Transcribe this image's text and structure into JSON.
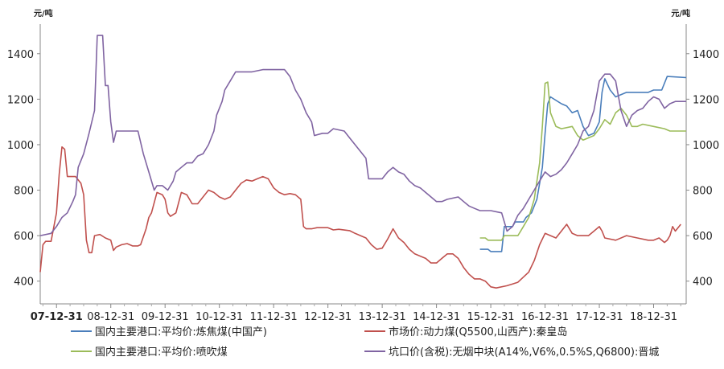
{
  "chart_data": {
    "type": "line",
    "left_unit": "元/吨",
    "right_unit": "元/吨",
    "ylim": [
      300,
      1530
    ],
    "y_ticks": [
      400,
      600,
      800,
      1000,
      1200,
      1400
    ],
    "x_ticks": [
      "07-12-31",
      "08-12-31",
      "09-12-31",
      "10-12-31",
      "11-12-31",
      "12-12-31",
      "13-12-31",
      "14-12-31",
      "15-12-31",
      "16-12-31",
      "17-12-31",
      "18-12-31"
    ],
    "x_tick_pos": [
      0.0,
      1.0,
      2.0,
      3.0,
      4.0,
      5.0,
      6.0,
      7.0,
      8.0,
      9.0,
      10.0,
      11.0
    ],
    "xlim": [
      -0.3,
      11.6
    ],
    "grid": false,
    "legend_position": "bottom",
    "series": [
      {
        "name": "国内主要港口:平均价:炼焦煤(中国产)",
        "color": "#4a7ebb",
        "points": [
          [
            7.8,
            540
          ],
          [
            7.95,
            540
          ],
          [
            8.0,
            530
          ],
          [
            8.2,
            530
          ],
          [
            8.25,
            640
          ],
          [
            8.4,
            640
          ],
          [
            8.45,
            660
          ],
          [
            8.6,
            660
          ],
          [
            8.65,
            680
          ],
          [
            8.75,
            700
          ],
          [
            8.85,
            760
          ],
          [
            8.95,
            900
          ],
          [
            9.0,
            1050
          ],
          [
            9.05,
            1180
          ],
          [
            9.1,
            1210
          ],
          [
            9.3,
            1180
          ],
          [
            9.4,
            1170
          ],
          [
            9.5,
            1140
          ],
          [
            9.6,
            1150
          ],
          [
            9.7,
            1080
          ],
          [
            9.8,
            1040
          ],
          [
            9.9,
            1050
          ],
          [
            10.0,
            1100
          ],
          [
            10.05,
            1230
          ],
          [
            10.1,
            1290
          ],
          [
            10.2,
            1240
          ],
          [
            10.3,
            1210
          ],
          [
            10.5,
            1230
          ],
          [
            10.7,
            1230
          ],
          [
            10.9,
            1230
          ],
          [
            11.0,
            1240
          ],
          [
            11.15,
            1240
          ],
          [
            11.25,
            1300
          ],
          [
            11.6,
            1295
          ]
        ]
      },
      {
        "name": "市场价:动力煤(Q5500,山西产):秦皇岛",
        "color": "#c0504d",
        "points": [
          [
            -0.3,
            440
          ],
          [
            -0.25,
            560
          ],
          [
            -0.2,
            575
          ],
          [
            -0.1,
            575
          ],
          [
            0.0,
            700
          ],
          [
            0.05,
            870
          ],
          [
            0.1,
            990
          ],
          [
            0.15,
            980
          ],
          [
            0.2,
            860
          ],
          [
            0.35,
            860
          ],
          [
            0.45,
            830
          ],
          [
            0.5,
            780
          ],
          [
            0.55,
            580
          ],
          [
            0.6,
            525
          ],
          [
            0.65,
            525
          ],
          [
            0.7,
            600
          ],
          [
            0.8,
            605
          ],
          [
            0.9,
            590
          ],
          [
            1.0,
            580
          ],
          [
            1.05,
            535
          ],
          [
            1.1,
            550
          ],
          [
            1.2,
            560
          ],
          [
            1.3,
            565
          ],
          [
            1.4,
            555
          ],
          [
            1.5,
            555
          ],
          [
            1.55,
            560
          ],
          [
            1.65,
            630
          ],
          [
            1.7,
            680
          ],
          [
            1.75,
            700
          ],
          [
            1.85,
            790
          ],
          [
            1.95,
            780
          ],
          [
            2.0,
            760
          ],
          [
            2.05,
            700
          ],
          [
            2.1,
            685
          ],
          [
            2.2,
            700
          ],
          [
            2.3,
            790
          ],
          [
            2.4,
            780
          ],
          [
            2.5,
            740
          ],
          [
            2.6,
            740
          ],
          [
            2.7,
            770
          ],
          [
            2.8,
            800
          ],
          [
            2.9,
            790
          ],
          [
            3.0,
            770
          ],
          [
            3.1,
            760
          ],
          [
            3.2,
            770
          ],
          [
            3.3,
            800
          ],
          [
            3.4,
            830
          ],
          [
            3.5,
            845
          ],
          [
            3.6,
            840
          ],
          [
            3.7,
            850
          ],
          [
            3.8,
            860
          ],
          [
            3.9,
            850
          ],
          [
            4.0,
            810
          ],
          [
            4.1,
            790
          ],
          [
            4.2,
            780
          ],
          [
            4.3,
            785
          ],
          [
            4.4,
            780
          ],
          [
            4.5,
            760
          ],
          [
            4.55,
            640
          ],
          [
            4.6,
            630
          ],
          [
            4.7,
            630
          ],
          [
            4.8,
            635
          ],
          [
            5.0,
            635
          ],
          [
            5.1,
            625
          ],
          [
            5.2,
            628
          ],
          [
            5.4,
            622
          ],
          [
            5.5,
            610
          ],
          [
            5.6,
            600
          ],
          [
            5.7,
            590
          ],
          [
            5.8,
            560
          ],
          [
            5.9,
            540
          ],
          [
            6.0,
            545
          ],
          [
            6.1,
            585
          ],
          [
            6.2,
            630
          ],
          [
            6.3,
            590
          ],
          [
            6.4,
            570
          ],
          [
            6.5,
            540
          ],
          [
            6.6,
            520
          ],
          [
            6.7,
            510
          ],
          [
            6.8,
            500
          ],
          [
            6.9,
            480
          ],
          [
            7.0,
            480
          ],
          [
            7.1,
            500
          ],
          [
            7.2,
            520
          ],
          [
            7.3,
            520
          ],
          [
            7.4,
            500
          ],
          [
            7.5,
            460
          ],
          [
            7.6,
            430
          ],
          [
            7.7,
            410
          ],
          [
            7.8,
            410
          ],
          [
            7.9,
            400
          ],
          [
            8.0,
            375
          ],
          [
            8.1,
            370
          ],
          [
            8.3,
            380
          ],
          [
            8.5,
            395
          ],
          [
            8.7,
            440
          ],
          [
            8.8,
            490
          ],
          [
            8.9,
            560
          ],
          [
            9.0,
            610
          ],
          [
            9.1,
            600
          ],
          [
            9.2,
            590
          ],
          [
            9.3,
            620
          ],
          [
            9.4,
            650
          ],
          [
            9.5,
            610
          ],
          [
            9.6,
            600
          ],
          [
            9.7,
            600
          ],
          [
            9.8,
            600
          ],
          [
            9.9,
            620
          ],
          [
            10.0,
            640
          ],
          [
            10.05,
            620
          ],
          [
            10.1,
            590
          ],
          [
            10.3,
            580
          ],
          [
            10.5,
            600
          ],
          [
            10.7,
            590
          ],
          [
            10.9,
            580
          ],
          [
            11.0,
            580
          ],
          [
            11.1,
            590
          ],
          [
            11.2,
            570
          ],
          [
            11.25,
            580
          ],
          [
            11.3,
            600
          ],
          [
            11.35,
            640
          ],
          [
            11.4,
            620
          ],
          [
            11.5,
            650
          ]
        ]
      },
      {
        "name": "国内主要港口:平均价:喷吹煤",
        "color": "#9bbb59",
        "points": [
          [
            7.8,
            590
          ],
          [
            7.9,
            590
          ],
          [
            7.95,
            580
          ],
          [
            8.2,
            580
          ],
          [
            8.25,
            600
          ],
          [
            8.5,
            600
          ],
          [
            8.6,
            640
          ],
          [
            8.7,
            680
          ],
          [
            8.8,
            760
          ],
          [
            8.9,
            920
          ],
          [
            8.95,
            1080
          ],
          [
            9.0,
            1270
          ],
          [
            9.05,
            1275
          ],
          [
            9.1,
            1140
          ],
          [
            9.2,
            1080
          ],
          [
            9.3,
            1070
          ],
          [
            9.5,
            1080
          ],
          [
            9.6,
            1040
          ],
          [
            9.7,
            1020
          ],
          [
            9.8,
            1030
          ],
          [
            9.9,
            1040
          ],
          [
            10.0,
            1070
          ],
          [
            10.1,
            1110
          ],
          [
            10.2,
            1090
          ],
          [
            10.3,
            1140
          ],
          [
            10.4,
            1160
          ],
          [
            10.5,
            1130
          ],
          [
            10.6,
            1080
          ],
          [
            10.7,
            1080
          ],
          [
            10.8,
            1090
          ],
          [
            11.0,
            1080
          ],
          [
            11.2,
            1070
          ],
          [
            11.3,
            1060
          ],
          [
            11.6,
            1060
          ]
        ]
      },
      {
        "name": "坑口价(含税):无烟中块(A14%,V6%,0.5%S,Q6800):晋城",
        "color": "#8064a2",
        "points": [
          [
            -0.3,
            600
          ],
          [
            -0.1,
            610
          ],
          [
            0.0,
            640
          ],
          [
            0.1,
            680
          ],
          [
            0.2,
            700
          ],
          [
            0.3,
            750
          ],
          [
            0.35,
            780
          ],
          [
            0.4,
            900
          ],
          [
            0.5,
            960
          ],
          [
            0.6,
            1050
          ],
          [
            0.7,
            1150
          ],
          [
            0.75,
            1480
          ],
          [
            0.85,
            1480
          ],
          [
            0.9,
            1260
          ],
          [
            0.95,
            1260
          ],
          [
            1.0,
            1100
          ],
          [
            1.05,
            1010
          ],
          [
            1.1,
            1060
          ],
          [
            1.3,
            1060
          ],
          [
            1.5,
            1060
          ],
          [
            1.6,
            960
          ],
          [
            1.7,
            880
          ],
          [
            1.8,
            800
          ],
          [
            1.85,
            820
          ],
          [
            1.95,
            820
          ],
          [
            2.05,
            800
          ],
          [
            2.15,
            840
          ],
          [
            2.2,
            880
          ],
          [
            2.3,
            900
          ],
          [
            2.4,
            920
          ],
          [
            2.5,
            920
          ],
          [
            2.6,
            950
          ],
          [
            2.7,
            960
          ],
          [
            2.8,
            1000
          ],
          [
            2.9,
            1060
          ],
          [
            2.95,
            1130
          ],
          [
            3.05,
            1190
          ],
          [
            3.1,
            1240
          ],
          [
            3.2,
            1280
          ],
          [
            3.3,
            1320
          ],
          [
            3.4,
            1320
          ],
          [
            3.6,
            1320
          ],
          [
            3.8,
            1330
          ],
          [
            4.0,
            1330
          ],
          [
            4.2,
            1330
          ],
          [
            4.3,
            1300
          ],
          [
            4.4,
            1240
          ],
          [
            4.5,
            1200
          ],
          [
            4.6,
            1140
          ],
          [
            4.7,
            1100
          ],
          [
            4.75,
            1040
          ],
          [
            4.9,
            1050
          ],
          [
            5.0,
            1050
          ],
          [
            5.1,
            1070
          ],
          [
            5.3,
            1060
          ],
          [
            5.4,
            1030
          ],
          [
            5.5,
            1000
          ],
          [
            5.6,
            970
          ],
          [
            5.7,
            940
          ],
          [
            5.75,
            850
          ],
          [
            5.9,
            850
          ],
          [
            6.0,
            850
          ],
          [
            6.1,
            880
          ],
          [
            6.2,
            900
          ],
          [
            6.3,
            880
          ],
          [
            6.4,
            870
          ],
          [
            6.5,
            840
          ],
          [
            6.6,
            820
          ],
          [
            6.7,
            810
          ],
          [
            6.8,
            790
          ],
          [
            6.9,
            770
          ],
          [
            7.0,
            750
          ],
          [
            7.1,
            750
          ],
          [
            7.2,
            760
          ],
          [
            7.4,
            770
          ],
          [
            7.5,
            750
          ],
          [
            7.6,
            730
          ],
          [
            7.7,
            720
          ],
          [
            7.8,
            710
          ],
          [
            8.0,
            710
          ],
          [
            8.2,
            700
          ],
          [
            8.3,
            620
          ],
          [
            8.4,
            640
          ],
          [
            8.5,
            690
          ],
          [
            8.6,
            720
          ],
          [
            8.7,
            760
          ],
          [
            8.8,
            800
          ],
          [
            8.9,
            840
          ],
          [
            9.0,
            880
          ],
          [
            9.1,
            860
          ],
          [
            9.2,
            870
          ],
          [
            9.3,
            890
          ],
          [
            9.4,
            920
          ],
          [
            9.5,
            960
          ],
          [
            9.6,
            1000
          ],
          [
            9.7,
            1060
          ],
          [
            9.8,
            1080
          ],
          [
            9.9,
            1150
          ],
          [
            10.0,
            1280
          ],
          [
            10.1,
            1310
          ],
          [
            10.2,
            1310
          ],
          [
            10.3,
            1280
          ],
          [
            10.4,
            1150
          ],
          [
            10.5,
            1080
          ],
          [
            10.6,
            1130
          ],
          [
            10.7,
            1150
          ],
          [
            10.8,
            1160
          ],
          [
            10.9,
            1190
          ],
          [
            11.0,
            1210
          ],
          [
            11.1,
            1200
          ],
          [
            11.2,
            1160
          ],
          [
            11.3,
            1180
          ],
          [
            11.4,
            1190
          ],
          [
            11.6,
            1190
          ]
        ]
      }
    ]
  }
}
